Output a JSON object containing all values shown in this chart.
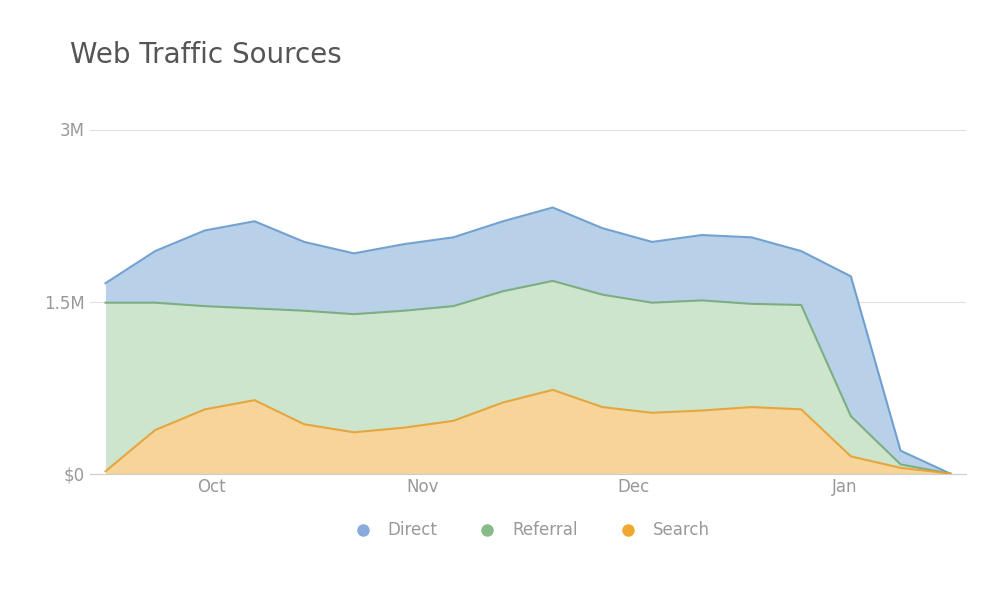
{
  "title": "Web Traffic Sources",
  "title_fontsize": 20,
  "title_color": "#555555",
  "background_color": "#ffffff",
  "x_labels": [
    "Oct",
    "Nov",
    "Dec",
    "Jan"
  ],
  "ytick_labels": [
    "$0",
    "1.5M",
    "3M"
  ],
  "yticks": [
    0,
    1500000,
    3000000
  ],
  "ylim": [
    0,
    3200000
  ],
  "n_points": 18,
  "x_tick_positions": [
    2,
    6,
    10,
    14
  ],
  "search": [
    20000,
    380000,
    560000,
    640000,
    430000,
    360000,
    400000,
    460000,
    620000,
    730000,
    580000,
    530000,
    550000,
    580000,
    560000,
    150000,
    50000,
    0
  ],
  "referral": [
    1490000,
    1490000,
    1460000,
    1440000,
    1420000,
    1390000,
    1420000,
    1460000,
    1590000,
    1680000,
    1560000,
    1490000,
    1510000,
    1480000,
    1470000,
    500000,
    80000,
    0
  ],
  "direct": [
    1660000,
    1940000,
    2120000,
    2200000,
    2020000,
    1920000,
    2000000,
    2060000,
    2200000,
    2320000,
    2140000,
    2020000,
    2080000,
    2060000,
    1940000,
    1720000,
    200000,
    0
  ],
  "direct_color": "#b8d0e8",
  "referral_color": "#cce5cc",
  "search_color": "#f7d49a",
  "direct_line_color": "#6699cc",
  "referral_line_color": "#77aa77",
  "search_line_color": "#e8a030",
  "grid_color": "#e0e0e0",
  "axis_color": "#cccccc",
  "tick_color": "#999999",
  "legend_dot_direct": "#88aadd",
  "legend_dot_referral": "#88bb88",
  "legend_dot_search": "#f0a830"
}
